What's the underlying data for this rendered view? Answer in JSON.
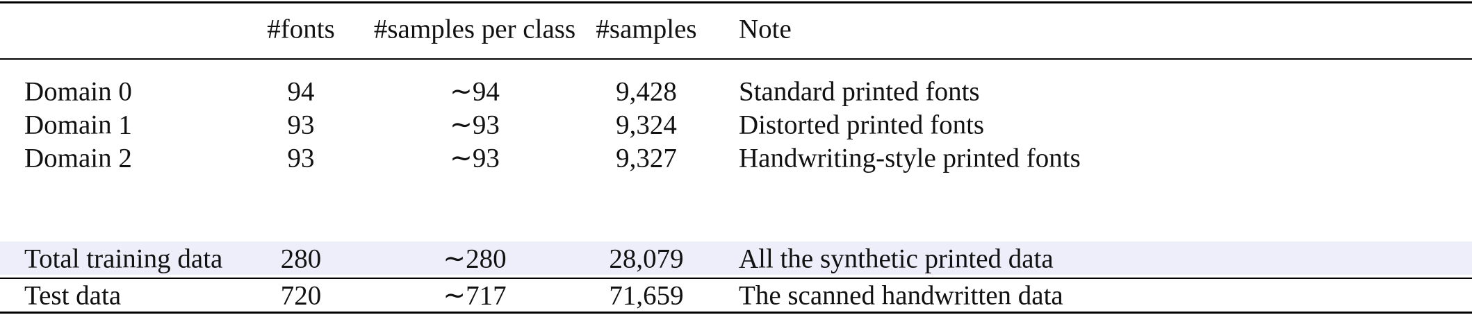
{
  "table": {
    "header": [
      "",
      "#fonts",
      "#samples per class",
      "#samples",
      "Note"
    ],
    "rows": [
      [
        "Domain 0",
        "94",
        "∼94",
        "9,428",
        "Standard printed fonts"
      ],
      [
        "Domain 1",
        "93",
        "∼93",
        "9,324",
        "Distorted printed fonts"
      ],
      [
        "Domain 2",
        "93",
        "∼93",
        "9,327",
        "Handwriting-style printed fonts"
      ],
      [
        "Total training data",
        "280",
        "∼280",
        "28,079",
        "All the synthetic printed data"
      ],
      [
        "Test data",
        "720",
        "∼717",
        "71,659",
        "The scanned handwritten data"
      ]
    ]
  }
}
